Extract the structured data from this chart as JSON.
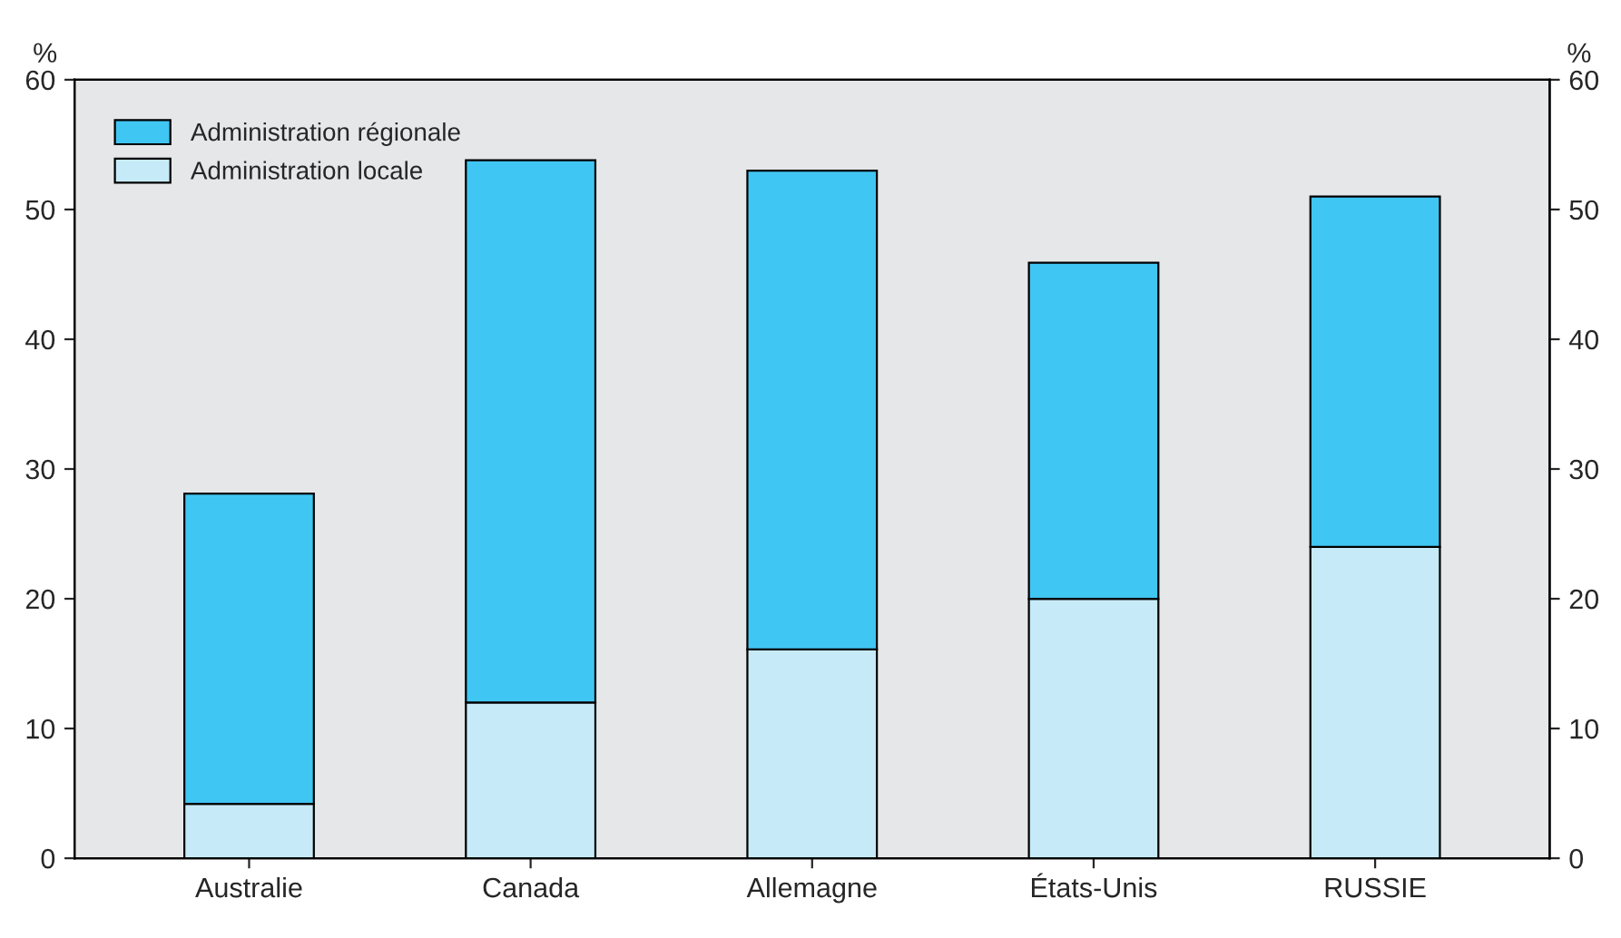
{
  "chart_data": {
    "type": "bar",
    "stacked": true,
    "categories": [
      "Australie",
      "Canada",
      "Allemagne",
      "États-Unis",
      "RUSSIE"
    ],
    "series": [
      {
        "name": "Administration locale",
        "color": "#c6eaf8",
        "values": [
          4.2,
          12,
          16.1,
          20,
          24
        ]
      },
      {
        "name": "Administration régionale",
        "color": "#40c6f2",
        "values": [
          23.9,
          41.8,
          36.9,
          25.9,
          27
        ]
      }
    ],
    "ylabel": "%",
    "y2label": "%",
    "ylim": [
      0,
      60
    ],
    "yticks": [
      0,
      10,
      20,
      30,
      40,
      50,
      60
    ],
    "y2lim": [
      0,
      60
    ],
    "y2ticks": [
      0,
      10,
      20,
      30,
      40,
      50,
      60
    ],
    "legend": "top left",
    "grid": false
  }
}
